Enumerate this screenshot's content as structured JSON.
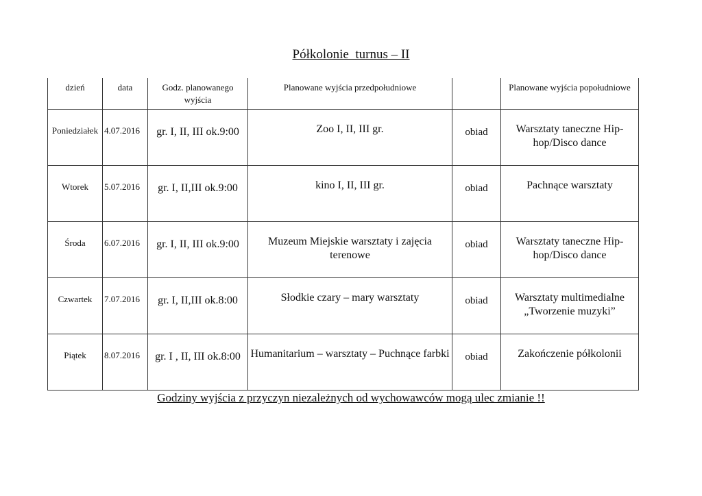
{
  "title": "Półkolonie  turnus – II",
  "headers": [
    "dzień",
    "data",
    "Godz. planowanego wyjścia",
    "Planowane wyjścia przedpołudniowe",
    "",
    "Planowane wyjścia popołudniowe"
  ],
  "rows": [
    {
      "day": "Poniedziałek",
      "date": "4.07.2016",
      "time": "gr. I, II, III ok.9:00",
      "morning": "Zoo I, II, III gr.",
      "lunch": "obiad",
      "afternoon": "Warsztaty taneczne Hip-hop/Disco dance"
    },
    {
      "day": "Wtorek",
      "date": "5.07.2016",
      "time": "gr. I, II,III ok.9:00",
      "morning": "kino I, II, III gr.",
      "lunch": "obiad",
      "afternoon": "Pachnące warsztaty"
    },
    {
      "day": "Środa",
      "date": "6.07.2016",
      "time": "gr. I, II, III ok.9:00",
      "morning": "Muzeum Miejskie warsztaty i zajęcia terenowe",
      "lunch": "obiad",
      "afternoon": "Warsztaty taneczne Hip-hop/Disco dance"
    },
    {
      "day": "Czwartek",
      "date": "7.07.2016",
      "time": "gr. I, II,III ok.8:00",
      "morning": "Słodkie czary – mary warsztaty",
      "lunch": "obiad",
      "afternoon": "Warsztaty multimedialne „Tworzenie muzyki”"
    },
    {
      "day": "Piątek",
      "date": "8.07.2016",
      "time": "gr. I , II, III ok.8:00",
      "morning": "Humanitarium – warsztaty – Puchnące farbki",
      "lunch": "obiad",
      "afternoon": "Zakończenie półkolonii"
    }
  ],
  "footer": "Godziny wyjścia z przyczyn niezależnych od wychowawców mogą ulec zmianie !!"
}
